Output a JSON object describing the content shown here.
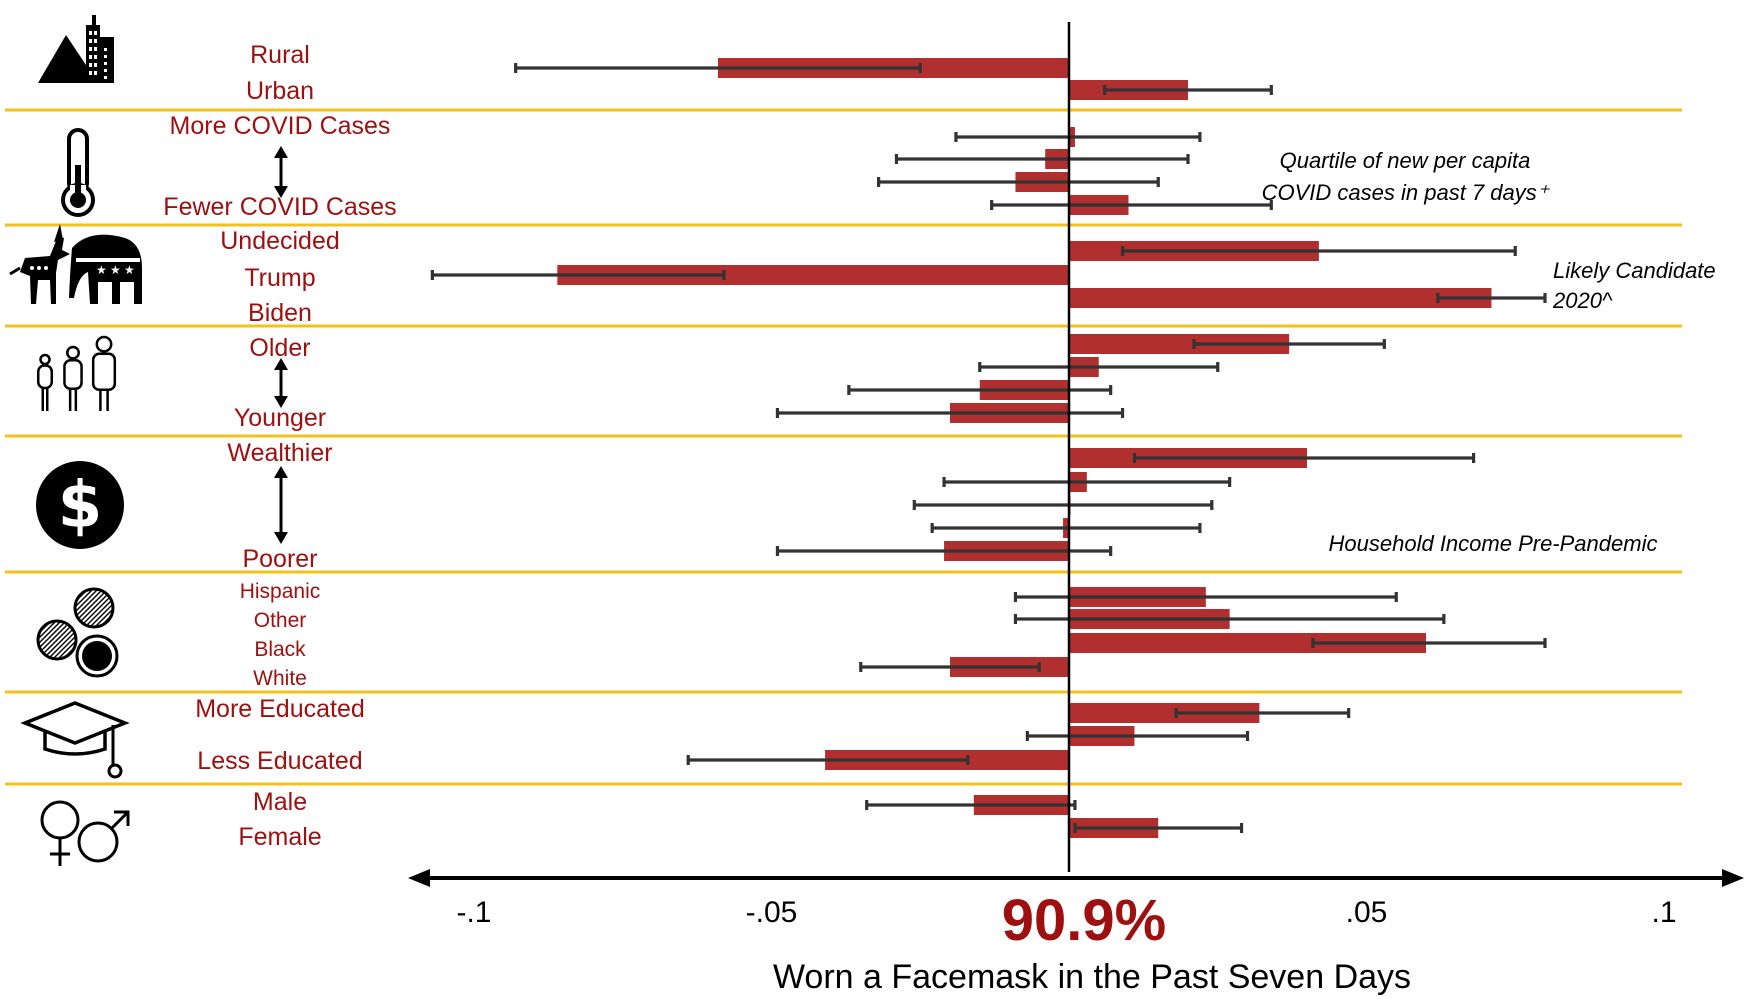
{
  "chart_data": {
    "type": "bar",
    "orientation": "horizontal",
    "xlabel": "Worn a Facemask in the Past Seven Days",
    "baseline_label": "90.9%",
    "xlim": [
      -0.115,
      0.115
    ],
    "xticks": [
      {
        "value": -0.1,
        "label": "-.1"
      },
      {
        "value": -0.05,
        "label": "-.05"
      },
      {
        "value": 0.05,
        "label": ".05"
      },
      {
        "value": 0.1,
        "label": ".1"
      }
    ],
    "groups": [
      {
        "icon": "rural-urban-icon",
        "labels": [
          "Rural",
          "Urban"
        ],
        "bars": [
          {
            "value": -0.059,
            "ci": [
              -0.093,
              -0.025
            ]
          },
          {
            "value": 0.02,
            "ci": [
              0.006,
              0.034
            ]
          }
        ]
      },
      {
        "icon": "thermometer-icon",
        "labels": [
          "More COVID Cases",
          "Fewer COVID Cases"
        ],
        "note": "Quartile of new per capita COVID cases in past 7 days⁺",
        "bars": [
          {
            "value": 0.001,
            "ci": [
              -0.019,
              0.022
            ]
          },
          {
            "value": -0.004,
            "ci": [
              -0.029,
              0.02
            ]
          },
          {
            "value": -0.009,
            "ci": [
              -0.032,
              0.015
            ]
          },
          {
            "value": 0.01,
            "ci": [
              -0.013,
              0.034
            ]
          }
        ]
      },
      {
        "icon": "donkey-elephant-icon",
        "labels": [
          "Undecided",
          "Trump",
          "Biden"
        ],
        "note": "Likely Candidate 2020^",
        "bars": [
          {
            "value": 0.042,
            "ci": [
              0.009,
              0.075
            ]
          },
          {
            "value": -0.086,
            "ci": [
              -0.107,
              -0.058
            ]
          },
          {
            "value": 0.071,
            "ci": [
              0.062,
              0.08
            ]
          }
        ]
      },
      {
        "icon": "family-icon",
        "labels": [
          "Older",
          "Younger"
        ],
        "bars": [
          {
            "value": 0.037,
            "ci": [
              0.021,
              0.053
            ]
          },
          {
            "value": 0.005,
            "ci": [
              -0.015,
              0.025
            ]
          },
          {
            "value": -0.015,
            "ci": [
              -0.037,
              0.007
            ]
          },
          {
            "value": -0.02,
            "ci": [
              -0.049,
              0.009
            ]
          }
        ]
      },
      {
        "icon": "dollar-icon",
        "labels": [
          "Wealthier",
          "Poorer"
        ],
        "note": "Household Income Pre-Pandemic",
        "bars": [
          {
            "value": 0.04,
            "ci": [
              0.011,
              0.068
            ]
          },
          {
            "value": 0.003,
            "ci": [
              -0.021,
              0.027
            ]
          },
          {
            "value": 0.0,
            "ci": [
              -0.026,
              0.024
            ]
          },
          {
            "value": -0.001,
            "ci": [
              -0.023,
              0.022
            ]
          },
          {
            "value": -0.021,
            "ci": [
              -0.049,
              0.007
            ]
          }
        ]
      },
      {
        "icon": "race-circles-icon",
        "labels": [
          "Hispanic",
          "Other",
          "Black",
          "White"
        ],
        "bars": [
          {
            "value": 0.023,
            "ci": [
              -0.009,
              0.055
            ]
          },
          {
            "value": 0.027,
            "ci": [
              -0.009,
              0.063
            ]
          },
          {
            "value": 0.06,
            "ci": [
              0.041,
              0.08
            ]
          },
          {
            "value": -0.02,
            "ci": [
              -0.035,
              -0.005
            ]
          }
        ]
      },
      {
        "icon": "graduation-cap-icon",
        "labels": [
          "More Educated",
          "Less Educated"
        ],
        "bars": [
          {
            "value": 0.032,
            "ci": [
              0.018,
              0.047
            ]
          },
          {
            "value": 0.011,
            "ci": [
              -0.007,
              0.03
            ]
          },
          {
            "value": -0.041,
            "ci": [
              -0.064,
              -0.017
            ]
          }
        ]
      },
      {
        "icon": "gender-icon",
        "labels": [
          "Male",
          "Female"
        ],
        "bars": [
          {
            "value": -0.016,
            "ci": [
              -0.034,
              0.001
            ]
          },
          {
            "value": 0.015,
            "ci": [
              0.001,
              0.029
            ]
          }
        ]
      }
    ]
  },
  "colors": {
    "bar": "#b22f2f",
    "label": "#9e1010",
    "separator": "#f2c21b",
    "errorbar": "#333333",
    "axis": "#000000",
    "baseline_label": "#9e1010"
  }
}
